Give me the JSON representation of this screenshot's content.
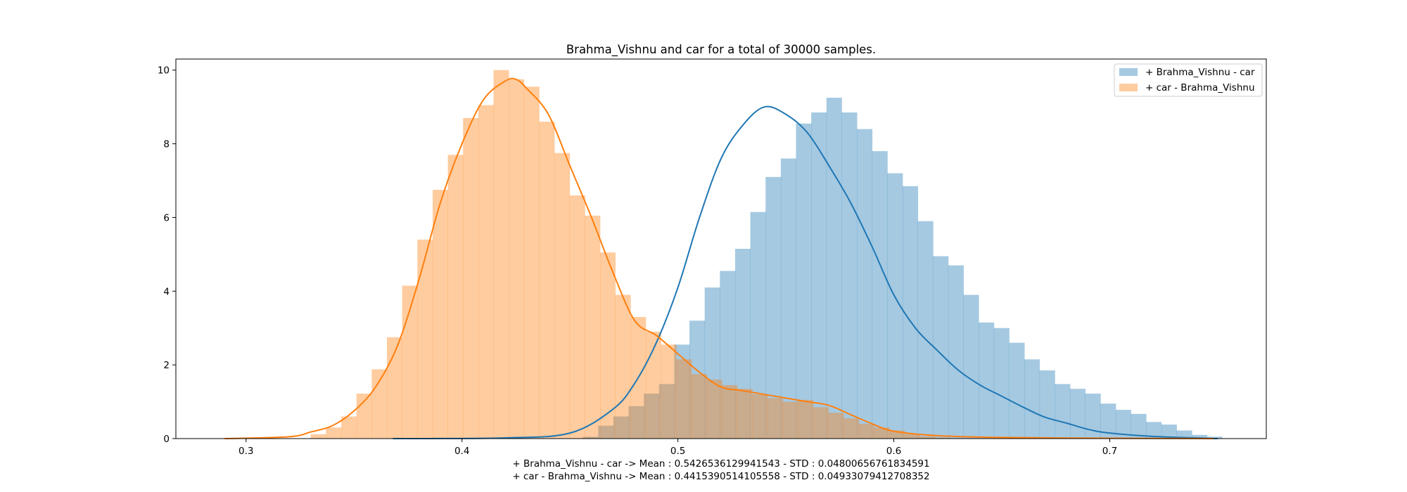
{
  "chart_data": {
    "type": "histogram_kde",
    "title": "Brahma_Vishnu and car for a total of 30000 samples.",
    "xlabel_lines": [
      "+ Brahma_Vishnu - car -> Mean : 0.5426536129941543 - STD : 0.04800656761834591",
      "+ car - Brahma_Vishnu -> Mean : 0.4415390514105558 - STD : 0.04933079412708352"
    ],
    "ylabel": "",
    "xlim": [
      0.2675,
      0.7725
    ],
    "ylim": [
      0,
      10.3
    ],
    "xticks": [
      0.3,
      0.4,
      0.5,
      0.6,
      0.7
    ],
    "xtick_labels": [
      "0.3",
      "0.4",
      "0.5",
      "0.6",
      "0.7"
    ],
    "yticks": [
      0,
      2,
      4,
      6,
      8,
      10
    ],
    "ytick_labels": [
      "0",
      "2",
      "4",
      "6",
      "8",
      "10"
    ],
    "legend_position": "upper right",
    "grid": false,
    "series": [
      {
        "name": "+ Brahma_Vishnu - car",
        "color": "#1f77b4",
        "bin_start": 0.456,
        "bin_width": 0.00705,
        "hist": [
          0.05,
          0.35,
          0.6,
          0.88,
          1.22,
          1.48,
          2.55,
          3.2,
          4.1,
          4.55,
          5.15,
          6.15,
          7.1,
          7.6,
          8.55,
          8.85,
          9.25,
          8.85,
          8.4,
          7.8,
          7.2,
          6.85,
          5.9,
          4.95,
          4.7,
          3.9,
          3.15,
          3.0,
          2.6,
          2.15,
          1.85,
          1.48,
          1.35,
          1.22,
          0.95,
          0.78,
          0.67,
          0.45,
          0.38,
          0.22,
          0.1,
          0.05
        ],
        "kde_x": [
          0.368,
          0.42,
          0.45,
          0.47,
          0.48,
          0.49,
          0.5,
          0.51,
          0.52,
          0.53,
          0.54,
          0.55,
          0.56,
          0.57,
          0.58,
          0.59,
          0.6,
          0.61,
          0.62,
          0.63,
          0.64,
          0.65,
          0.66,
          0.67,
          0.68,
          0.69,
          0.7,
          0.72,
          0.75
        ],
        "kde_y": [
          0.0,
          0.02,
          0.15,
          0.8,
          1.5,
          2.6,
          4.1,
          6.0,
          7.6,
          8.5,
          9.0,
          8.8,
          8.3,
          7.4,
          6.4,
          5.2,
          3.9,
          3.0,
          2.4,
          1.85,
          1.45,
          1.15,
          0.85,
          0.58,
          0.42,
          0.25,
          0.15,
          0.06,
          0.0
        ]
      },
      {
        "name": "+ car - Brahma_Vishnu",
        "color": "#ff7f0e",
        "bin_start": 0.33,
        "bin_width": 0.00705,
        "hist": [
          0.12,
          0.3,
          0.6,
          1.22,
          1.88,
          2.75,
          4.15,
          5.4,
          6.75,
          7.7,
          8.7,
          9.05,
          10.0,
          9.75,
          9.55,
          8.6,
          7.75,
          6.6,
          6.05,
          5.05,
          3.9,
          3.3,
          2.9,
          2.55,
          2.15,
          1.75,
          1.6,
          1.45,
          1.35,
          1.2,
          1.1,
          1.0,
          1.05,
          0.85,
          0.7,
          0.55,
          0.4,
          0.3,
          0.22,
          0.12,
          0.06,
          0.03
        ],
        "kde_x": [
          0.29,
          0.32,
          0.33,
          0.34,
          0.35,
          0.36,
          0.37,
          0.38,
          0.39,
          0.4,
          0.41,
          0.42,
          0.425,
          0.43,
          0.44,
          0.45,
          0.46,
          0.47,
          0.48,
          0.49,
          0.5,
          0.51,
          0.52,
          0.53,
          0.54,
          0.55,
          0.56,
          0.57,
          0.58,
          0.59,
          0.6,
          0.62,
          0.65,
          0.7,
          0.748
        ],
        "kde_y": [
          0.0,
          0.05,
          0.18,
          0.35,
          0.75,
          1.4,
          2.5,
          4.3,
          6.4,
          8.0,
          9.2,
          9.7,
          9.75,
          9.5,
          8.8,
          7.4,
          6.0,
          4.5,
          3.2,
          2.8,
          2.3,
          1.8,
          1.4,
          1.3,
          1.2,
          1.1,
          1.0,
          0.9,
          0.65,
          0.4,
          0.2,
          0.08,
          0.03,
          0.01,
          0.0
        ]
      }
    ]
  }
}
